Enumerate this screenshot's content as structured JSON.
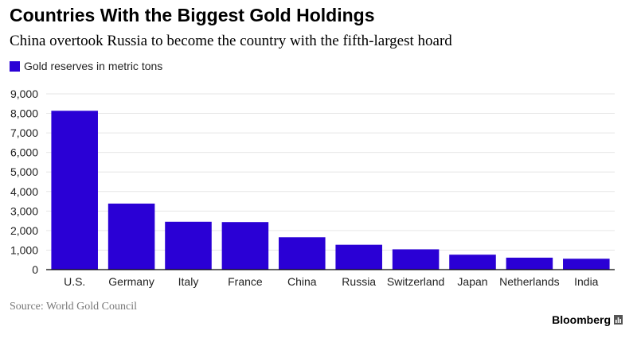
{
  "header": {
    "title": "Countries With the Biggest Gold Holdings",
    "subtitle": "China overtook Russia to become the country with the fifth-largest hoard"
  },
  "footer": {
    "source": "Source: World Gold Council",
    "brand": "Bloomberg",
    "brand_icon": "bar-chart-icon"
  },
  "colors": {
    "bar": "#2a00d5",
    "grid": "#e6e6e6",
    "axis": "#000000"
  },
  "chart_data": {
    "type": "bar",
    "title": "Countries With the Biggest Gold Holdings",
    "subtitle": "China overtook Russia to become the country with the fifth-largest hoard",
    "xlabel": "",
    "ylabel": "",
    "categories": [
      "U.S.",
      "Germany",
      "Italy",
      "France",
      "China",
      "Russia",
      "Switzerland",
      "Japan",
      "Netherlands",
      "India"
    ],
    "series": [
      {
        "name": "Gold reserves in metric tons",
        "values": [
          8133,
          3381,
          2452,
          2435,
          1658,
          1275,
          1040,
          765,
          612,
          557
        ]
      }
    ],
    "ylim": [
      0,
      9000
    ],
    "yticks": [
      0,
      1000,
      2000,
      3000,
      4000,
      5000,
      6000,
      7000,
      8000,
      9000
    ],
    "ytick_labels": [
      "0",
      "1,000",
      "2,000",
      "3,000",
      "4,000",
      "5,000",
      "6,000",
      "7,000",
      "8,000",
      "9,000"
    ],
    "grid": true,
    "legend_position": "top-left"
  }
}
